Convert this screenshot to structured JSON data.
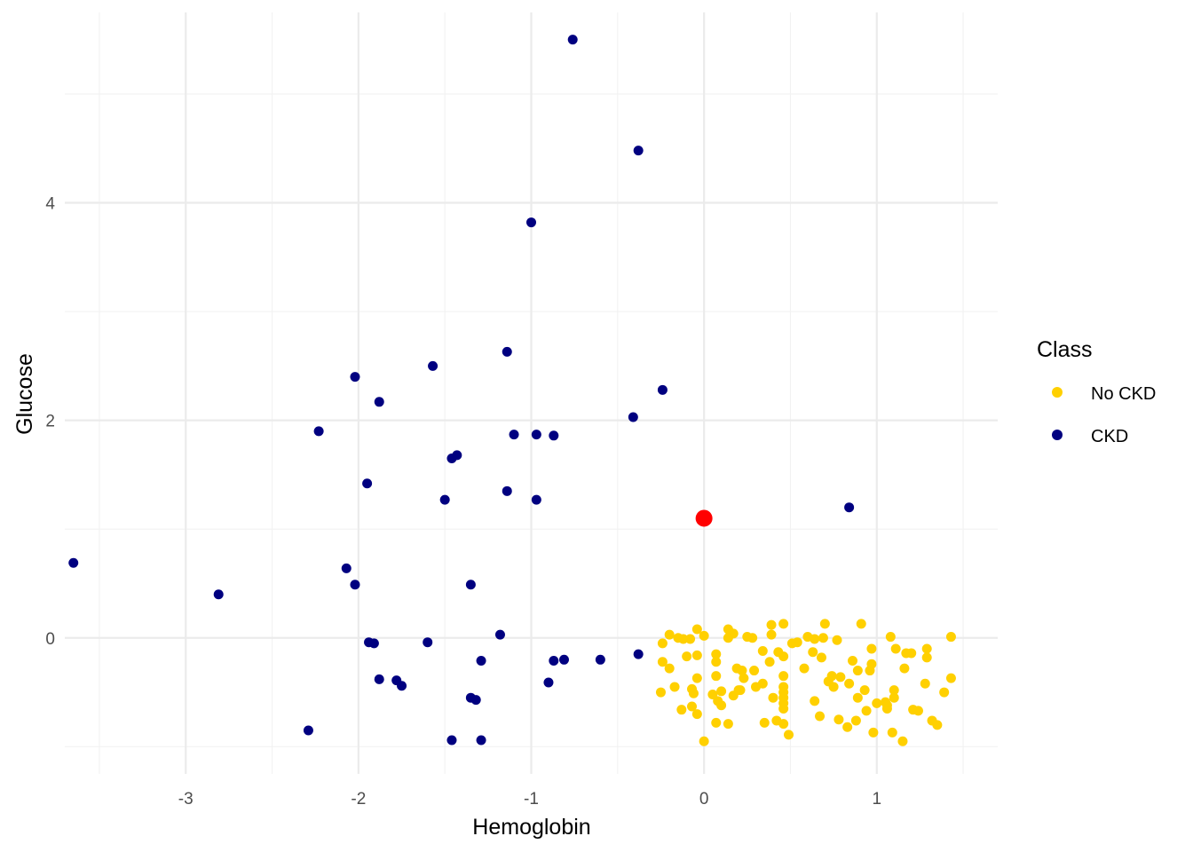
{
  "chart_data": {
    "type": "scatter",
    "title": "",
    "xlabel": "Hemoglobin",
    "ylabel": "Glucose",
    "xlim": [
      -3.7,
      1.7
    ],
    "ylim": [
      -1.25,
      5.75
    ],
    "x_ticks": [
      -3,
      -2,
      -1,
      0,
      1
    ],
    "x_tick_labels": [
      "-3",
      "-2",
      "-1",
      "0",
      "1"
    ],
    "y_ticks": [
      0,
      2,
      4
    ],
    "y_tick_labels": [
      "0",
      "2",
      "4"
    ],
    "grid": true,
    "legend": {
      "title": "Class",
      "position": "right"
    },
    "series": [
      {
        "name": "No CKD",
        "color": "#FFD000",
        "points": [
          [
            -0.2,
            0.03
          ],
          [
            -0.24,
            -0.05
          ],
          [
            -0.15,
            0.0
          ],
          [
            -0.12,
            -0.01
          ],
          [
            -0.08,
            -0.01
          ],
          [
            -0.04,
            0.08
          ],
          [
            0.0,
            0.02
          ],
          [
            0.14,
            0.08
          ],
          [
            0.17,
            0.04
          ],
          [
            0.14,
            0.0
          ],
          [
            0.25,
            0.01
          ],
          [
            0.28,
            0.0
          ],
          [
            0.39,
            0.12
          ],
          [
            0.46,
            0.13
          ],
          [
            0.39,
            0.03
          ],
          [
            0.51,
            -0.05
          ],
          [
            0.54,
            -0.04
          ],
          [
            0.6,
            0.01
          ],
          [
            0.64,
            -0.01
          ],
          [
            0.69,
            0.0
          ],
          [
            0.7,
            0.13
          ],
          [
            0.77,
            -0.02
          ],
          [
            0.91,
            0.13
          ],
          [
            1.08,
            0.01
          ],
          [
            1.11,
            -0.1
          ],
          [
            1.17,
            -0.14
          ],
          [
            1.2,
            -0.14
          ],
          [
            1.29,
            -0.1
          ],
          [
            1.29,
            -0.18
          ],
          [
            1.43,
            0.01
          ],
          [
            -0.24,
            -0.22
          ],
          [
            -0.2,
            -0.28
          ],
          [
            -0.1,
            -0.17
          ],
          [
            -0.04,
            -0.16
          ],
          [
            0.07,
            -0.15
          ],
          [
            0.07,
            -0.22
          ],
          [
            0.19,
            -0.28
          ],
          [
            0.22,
            -0.3
          ],
          [
            0.23,
            -0.37
          ],
          [
            0.29,
            -0.3
          ],
          [
            0.34,
            -0.12
          ],
          [
            0.38,
            -0.22
          ],
          [
            0.43,
            -0.13
          ],
          [
            0.46,
            -0.17
          ],
          [
            0.58,
            -0.28
          ],
          [
            0.63,
            -0.13
          ],
          [
            0.68,
            -0.18
          ],
          [
            0.72,
            -0.4
          ],
          [
            0.74,
            -0.35
          ],
          [
            0.79,
            -0.36
          ],
          [
            0.86,
            -0.21
          ],
          [
            0.89,
            -0.3
          ],
          [
            0.97,
            -0.24
          ],
          [
            0.96,
            -0.3
          ],
          [
            0.97,
            -0.1
          ],
          [
            1.16,
            -0.28
          ],
          [
            1.28,
            -0.42
          ],
          [
            1.43,
            -0.37
          ],
          [
            -0.25,
            -0.5
          ],
          [
            -0.17,
            -0.45
          ],
          [
            -0.07,
            -0.47
          ],
          [
            -0.04,
            -0.37
          ],
          [
            -0.06,
            -0.51
          ],
          [
            0.05,
            -0.52
          ],
          [
            0.07,
            -0.35
          ],
          [
            0.1,
            -0.49
          ],
          [
            0.17,
            -0.53
          ],
          [
            0.21,
            -0.48
          ],
          [
            0.34,
            -0.42
          ],
          [
            0.3,
            -0.45
          ],
          [
            0.46,
            -0.35
          ],
          [
            0.46,
            -0.45
          ],
          [
            0.46,
            -0.5
          ],
          [
            0.46,
            -0.55
          ],
          [
            0.64,
            -0.58
          ],
          [
            0.75,
            -0.45
          ],
          [
            0.84,
            -0.42
          ],
          [
            0.89,
            -0.55
          ],
          [
            0.93,
            -0.48
          ],
          [
            1.0,
            -0.6
          ],
          [
            1.05,
            -0.59
          ],
          [
            1.06,
            -0.62
          ],
          [
            1.1,
            -0.55
          ],
          [
            1.1,
            -0.48
          ],
          [
            1.21,
            -0.66
          ],
          [
            1.24,
            -0.67
          ],
          [
            1.39,
            -0.5
          ],
          [
            -0.13,
            -0.66
          ],
          [
            -0.07,
            -0.63
          ],
          [
            -0.04,
            -0.7
          ],
          [
            0.08,
            -0.58
          ],
          [
            0.1,
            -0.62
          ],
          [
            0.2,
            -0.48
          ],
          [
            0.4,
            -0.55
          ],
          [
            0.46,
            -0.65
          ],
          [
            0.46,
            -0.6
          ],
          [
            0.67,
            -0.72
          ],
          [
            0.78,
            -0.75
          ],
          [
            0.83,
            -0.82
          ],
          [
            0.88,
            -0.76
          ],
          [
            0.94,
            -0.67
          ],
          [
            1.06,
            -0.65
          ],
          [
            1.32,
            -0.76
          ],
          [
            1.35,
            -0.8
          ],
          [
            0.0,
            -0.95
          ],
          [
            0.07,
            -0.78
          ],
          [
            0.14,
            -0.79
          ],
          [
            0.35,
            -0.78
          ],
          [
            0.42,
            -0.76
          ],
          [
            0.46,
            -0.79
          ],
          [
            0.49,
            -0.89
          ],
          [
            0.98,
            -0.87
          ],
          [
            1.09,
            -0.87
          ],
          [
            1.15,
            -0.95
          ]
        ]
      },
      {
        "name": "CKD",
        "color": "#000080",
        "points": [
          [
            -0.76,
            5.5
          ],
          [
            -0.38,
            4.48
          ],
          [
            -1.0,
            3.82
          ],
          [
            -1.14,
            2.63
          ],
          [
            -1.57,
            2.5
          ],
          [
            -2.02,
            2.4
          ],
          [
            -1.88,
            2.17
          ],
          [
            -0.24,
            2.28
          ],
          [
            -0.41,
            2.03
          ],
          [
            -2.23,
            1.9
          ],
          [
            -1.1,
            1.87
          ],
          [
            -0.97,
            1.87
          ],
          [
            -0.87,
            1.86
          ],
          [
            -1.43,
            1.68
          ],
          [
            -1.46,
            1.65
          ],
          [
            -1.95,
            1.42
          ],
          [
            -1.14,
            1.35
          ],
          [
            -1.5,
            1.27
          ],
          [
            -0.97,
            1.27
          ],
          [
            0.84,
            1.2
          ],
          [
            -3.65,
            0.69
          ],
          [
            -2.07,
            0.64
          ],
          [
            -2.02,
            0.49
          ],
          [
            -1.35,
            0.49
          ],
          [
            -2.81,
            0.4
          ],
          [
            -1.18,
            0.03
          ],
          [
            -1.94,
            -0.04
          ],
          [
            -1.91,
            -0.05
          ],
          [
            -1.6,
            -0.04
          ],
          [
            -0.38,
            -0.15
          ],
          [
            -0.81,
            -0.2
          ],
          [
            -0.87,
            -0.21
          ],
          [
            -0.6,
            -0.2
          ],
          [
            -1.29,
            -0.21
          ],
          [
            -1.88,
            -0.38
          ],
          [
            -1.78,
            -0.39
          ],
          [
            -1.75,
            -0.44
          ],
          [
            -0.9,
            -0.41
          ],
          [
            -1.35,
            -0.55
          ],
          [
            -1.32,
            -0.57
          ],
          [
            -2.29,
            -0.85
          ],
          [
            -1.46,
            -0.94
          ],
          [
            -1.29,
            -0.94
          ]
        ]
      }
    ],
    "highlight_point": {
      "x": 0.0,
      "y": 1.1,
      "color": "#FF0000"
    },
    "colors": {
      "grid_major": "#EBEBEB",
      "grid_minor": "#F2F2F2"
    }
  }
}
